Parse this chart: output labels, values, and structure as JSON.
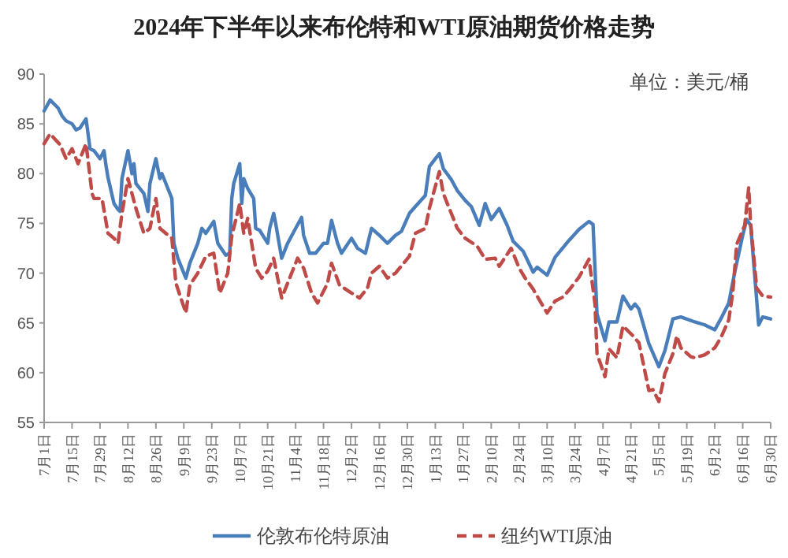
{
  "chart_data": {
    "type": "line",
    "title": "2024年下半年以来布伦特和WTI原油期货价格走势",
    "annotations": [
      "单位：美元/桶"
    ],
    "ylim": [
      55,
      90
    ],
    "yticks": [
      55,
      60,
      65,
      70,
      75,
      80,
      85,
      90
    ],
    "xlim": [
      "2024-07-01",
      "2025-06-30"
    ],
    "xticks": [
      {
        "value": "2024-07-01",
        "label": "7月1日"
      },
      {
        "value": "2024-07-15",
        "label": "7月15日"
      },
      {
        "value": "2024-07-29",
        "label": "7月29日"
      },
      {
        "value": "2024-08-12",
        "label": "8月12日"
      },
      {
        "value": "2024-08-26",
        "label": "8月26日"
      },
      {
        "value": "2024-09-09",
        "label": "9月9日"
      },
      {
        "value": "2024-09-23",
        "label": "9月23日"
      },
      {
        "value": "2024-10-07",
        "label": "10月7日"
      },
      {
        "value": "2024-10-21",
        "label": "10月21日"
      },
      {
        "value": "2024-11-04",
        "label": "11月4日"
      },
      {
        "value": "2024-11-18",
        "label": "11月18日"
      },
      {
        "value": "2024-12-02",
        "label": "12月2日"
      },
      {
        "value": "2024-12-16",
        "label": "12月16日"
      },
      {
        "value": "2024-12-30",
        "label": "12月30日"
      },
      {
        "value": "2025-01-13",
        "label": "1月13日"
      },
      {
        "value": "2025-01-27",
        "label": "1月27日"
      },
      {
        "value": "2025-02-10",
        "label": "2月10日"
      },
      {
        "value": "2025-02-24",
        "label": "2月24日"
      },
      {
        "value": "2025-03-10",
        "label": "3月10日"
      },
      {
        "value": "2025-03-24",
        "label": "3月24日"
      },
      {
        "value": "2025-04-07",
        "label": "4月7日"
      },
      {
        "value": "2025-04-21",
        "label": "4月21日"
      },
      {
        "value": "2025-05-05",
        "label": "5月5日"
      },
      {
        "value": "2025-05-19",
        "label": "5月19日"
      },
      {
        "value": "2025-06-02",
        "label": "6月2日"
      },
      {
        "value": "2025-06-16",
        "label": "6月16日"
      },
      {
        "value": "2025-06-30",
        "label": "6月30日"
      }
    ],
    "grid": false,
    "legend": "bottom",
    "marker": "none",
    "series": [
      {
        "name": "伦敦布伦特原油",
        "color": "#4a7ebb",
        "line_style": "solid",
        "x": [
          "2024-07-01",
          "2024-07-04",
          "2024-07-08",
          "2024-07-10",
          "2024-07-12",
          "2024-07-15",
          "2024-07-17",
          "2024-07-19",
          "2024-07-22",
          "2024-07-24",
          "2024-07-26",
          "2024-07-29",
          "2024-07-31",
          "2024-08-01",
          "2024-08-02",
          "2024-08-05",
          "2024-08-07",
          "2024-08-08",
          "2024-08-09",
          "2024-08-12",
          "2024-08-14",
          "2024-08-15",
          "2024-08-16",
          "2024-08-20",
          "2024-08-22",
          "2024-08-23",
          "2024-08-26",
          "2024-08-28",
          "2024-08-29",
          "2024-09-02",
          "2024-09-03",
          "2024-09-04",
          "2024-09-06",
          "2024-09-10",
          "2024-09-12",
          "2024-09-16",
          "2024-09-18",
          "2024-09-20",
          "2024-09-24",
          "2024-09-26",
          "2024-09-30",
          "2024-10-02",
          "2024-10-03",
          "2024-10-04",
          "2024-10-07",
          "2024-10-08",
          "2024-10-09",
          "2024-10-11",
          "2024-10-14",
          "2024-10-15",
          "2024-10-17",
          "2024-10-21",
          "2024-10-22",
          "2024-10-24",
          "2024-10-25",
          "2024-10-28",
          "2024-10-31",
          "2024-11-04",
          "2024-11-07",
          "2024-11-08",
          "2024-11-11",
          "2024-11-14",
          "2024-11-18",
          "2024-11-20",
          "2024-11-22",
          "2024-11-25",
          "2024-11-27",
          "2024-12-02",
          "2024-12-05",
          "2024-12-09",
          "2024-12-12",
          "2024-12-16",
          "2024-12-20",
          "2024-12-24",
          "2024-12-27",
          "2024-12-31",
          "2025-01-03",
          "2025-01-08",
          "2025-01-10",
          "2025-01-13",
          "2025-01-15",
          "2025-01-17",
          "2025-01-21",
          "2025-01-24",
          "2025-01-28",
          "2025-01-31",
          "2025-02-04",
          "2025-02-07",
          "2025-02-10",
          "2025-02-14",
          "2025-02-18",
          "2025-02-21",
          "2025-02-26",
          "2025-03-03",
          "2025-03-05",
          "2025-03-10",
          "2025-03-14",
          "2025-03-21",
          "2025-03-26",
          "2025-03-31",
          "2025-04-02",
          "2025-04-04",
          "2025-04-08",
          "2025-04-10",
          "2025-04-14",
          "2025-04-17",
          "2025-04-21",
          "2025-04-23",
          "2025-04-25",
          "2025-04-30",
          "2025-05-05",
          "2025-05-08",
          "2025-05-12",
          "2025-05-16",
          "2025-05-23",
          "2025-05-28",
          "2025-06-02",
          "2025-06-05",
          "2025-06-09",
          "2025-06-12",
          "2025-06-16",
          "2025-06-18",
          "2025-06-20",
          "2025-06-24",
          "2025-06-26",
          "2025-06-30"
        ],
        "values": [
          86.3,
          87.4,
          86.6,
          85.8,
          85.3,
          85.0,
          84.4,
          84.6,
          85.5,
          82.5,
          82.3,
          81.5,
          82.3,
          80.8,
          79.6,
          77.0,
          76.4,
          76.2,
          79.5,
          82.3,
          80.0,
          81.0,
          79.0,
          78.0,
          76.2,
          79.0,
          81.5,
          79.5,
          80.0,
          78.0,
          77.5,
          73.0,
          71.5,
          69.5,
          71.0,
          73.0,
          74.5,
          74.0,
          75.2,
          73.0,
          71.8,
          72.0,
          77.5,
          79.0,
          81.0,
          77.0,
          79.5,
          78.5,
          77.5,
          74.5,
          74.3,
          73.0,
          74.5,
          76.0,
          75.0,
          71.5,
          73.0,
          74.5,
          75.6,
          73.8,
          72.0,
          72.0,
          73.0,
          73.0,
          75.3,
          73.0,
          72.0,
          73.5,
          72.5,
          72.0,
          74.5,
          73.8,
          73.0,
          73.8,
          74.2,
          76.0,
          76.7,
          77.8,
          80.7,
          81.5,
          82.0,
          80.5,
          79.4,
          78.3,
          77.3,
          76.7,
          74.8,
          77.0,
          75.4,
          76.5,
          74.8,
          73.2,
          72.2,
          70.1,
          70.6,
          69.8,
          71.6,
          73.3,
          74.4,
          75.2,
          74.9,
          65.9,
          63.2,
          65.1,
          65.1,
          67.7,
          66.4,
          66.9,
          66.4,
          62.9,
          60.6,
          62.2,
          65.4,
          65.6,
          65.1,
          64.8,
          64.3,
          65.4,
          67.0,
          70.1,
          73.8,
          75.4,
          74.8,
          64.8,
          65.6,
          65.4
        ]
      },
      {
        "name": "纽约WTI原油",
        "color": "#be4b48",
        "line_style": "dashed",
        "x": [
          "2024-07-01",
          "2024-07-04",
          "2024-07-09",
          "2024-07-12",
          "2024-07-15",
          "2024-07-18",
          "2024-07-22",
          "2024-07-25",
          "2024-07-26",
          "2024-07-30",
          "2024-08-02",
          "2024-08-05",
          "2024-08-07",
          "2024-08-09",
          "2024-08-12",
          "2024-08-14",
          "2024-08-16",
          "2024-08-20",
          "2024-08-23",
          "2024-08-26",
          "2024-08-28",
          "2024-09-03",
          "2024-09-05",
          "2024-09-10",
          "2024-09-12",
          "2024-09-16",
          "2024-09-20",
          "2024-09-24",
          "2024-09-27",
          "2024-10-01",
          "2024-10-03",
          "2024-10-07",
          "2024-10-09",
          "2024-10-11",
          "2024-10-15",
          "2024-10-18",
          "2024-10-21",
          "2024-10-24",
          "2024-10-28",
          "2024-11-01",
          "2024-11-05",
          "2024-11-08",
          "2024-11-12",
          "2024-11-15",
          "2024-11-20",
          "2024-11-22",
          "2024-11-26",
          "2024-12-02",
          "2024-12-06",
          "2024-12-10",
          "2024-12-12",
          "2024-12-16",
          "2024-12-20",
          "2024-12-24",
          "2024-12-31",
          "2025-01-03",
          "2025-01-08",
          "2025-01-10",
          "2025-01-15",
          "2025-01-17",
          "2025-01-21",
          "2025-01-24",
          "2025-01-28",
          "2025-02-03",
          "2025-02-07",
          "2025-02-12",
          "2025-02-14",
          "2025-02-20",
          "2025-02-24",
          "2025-02-27",
          "2025-03-03",
          "2025-03-07",
          "2025-03-10",
          "2025-03-14",
          "2025-03-18",
          "2025-03-21",
          "2025-03-26",
          "2025-03-31",
          "2025-04-03",
          "2025-04-04",
          "2025-04-08",
          "2025-04-10",
          "2025-04-14",
          "2025-04-17",
          "2025-04-22",
          "2025-04-25",
          "2025-04-30",
          "2025-05-02",
          "2025-05-05",
          "2025-05-08",
          "2025-05-12",
          "2025-05-14",
          "2025-05-16",
          "2025-05-21",
          "2025-05-23",
          "2025-05-28",
          "2025-06-02",
          "2025-06-05",
          "2025-06-09",
          "2025-06-11",
          "2025-06-13",
          "2025-06-17",
          "2025-06-19",
          "2025-06-20",
          "2025-06-23",
          "2025-06-26",
          "2025-06-30"
        ],
        "values": [
          83.0,
          84.0,
          82.9,
          81.5,
          82.5,
          81.0,
          83.0,
          78.0,
          77.5,
          77.5,
          74.0,
          73.5,
          73.0,
          76.0,
          79.5,
          78.0,
          76.5,
          74.0,
          74.5,
          77.5,
          74.5,
          73.5,
          69.0,
          66.0,
          68.8,
          70.0,
          71.7,
          72.0,
          68.0,
          70.0,
          73.7,
          77.0,
          74.0,
          75.5,
          70.5,
          69.5,
          70.2,
          71.5,
          67.5,
          69.5,
          71.5,
          70.5,
          68.0,
          67.0,
          69.0,
          71.0,
          68.8,
          68.0,
          67.5,
          68.5,
          70.0,
          70.7,
          69.5,
          70.0,
          71.7,
          74.0,
          74.5,
          76.5,
          80.2,
          78.0,
          76.0,
          74.5,
          73.5,
          72.7,
          71.4,
          71.5,
          70.7,
          72.5,
          70.5,
          69.5,
          68.4,
          67.0,
          66.0,
          67.2,
          67.6,
          68.3,
          69.6,
          71.4,
          66.9,
          61.9,
          59.6,
          62.4,
          61.5,
          64.7,
          63.7,
          63.0,
          58.2,
          58.3,
          57.1,
          59.9,
          61.9,
          63.7,
          62.5,
          61.6,
          61.5,
          61.8,
          62.5,
          63.5,
          65.3,
          68.0,
          72.9,
          74.8,
          78.6,
          74.9,
          68.5,
          67.7,
          67.6
        ]
      }
    ]
  }
}
